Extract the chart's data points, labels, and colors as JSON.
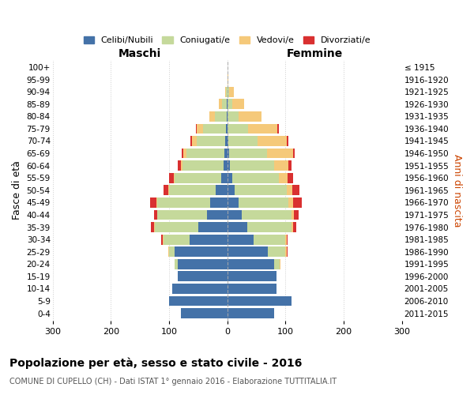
{
  "age_groups": [
    "0-4",
    "5-9",
    "10-14",
    "15-19",
    "20-24",
    "25-29",
    "30-34",
    "35-39",
    "40-44",
    "45-49",
    "50-54",
    "55-59",
    "60-64",
    "65-69",
    "70-74",
    "75-79",
    "80-84",
    "85-89",
    "90-94",
    "95-99",
    "100+"
  ],
  "birth_years": [
    "2011-2015",
    "2006-2010",
    "2001-2005",
    "1996-2000",
    "1991-1995",
    "1986-1990",
    "1981-1985",
    "1976-1980",
    "1971-1975",
    "1966-1970",
    "1961-1965",
    "1956-1960",
    "1951-1955",
    "1946-1950",
    "1941-1945",
    "1936-1940",
    "1931-1935",
    "1926-1930",
    "1921-1925",
    "1916-1920",
    "≤ 1915"
  ],
  "males": {
    "celibi": [
      80,
      100,
      95,
      85,
      85,
      90,
      65,
      50,
      35,
      30,
      20,
      10,
      7,
      5,
      3,
      2,
      1,
      1,
      0,
      0,
      0
    ],
    "coniugati": [
      0,
      0,
      0,
      0,
      5,
      10,
      45,
      75,
      85,
      90,
      80,
      80,
      70,
      65,
      50,
      40,
      20,
      8,
      2,
      0,
      0
    ],
    "vedovi": [
      0,
      0,
      0,
      0,
      0,
      1,
      1,
      1,
      1,
      2,
      2,
      2,
      3,
      5,
      8,
      10,
      10,
      5,
      1,
      0,
      0
    ],
    "divorziati": [
      0,
      0,
      0,
      0,
      0,
      0,
      2,
      5,
      5,
      10,
      8,
      8,
      5,
      3,
      2,
      2,
      0,
      0,
      0,
      0,
      0
    ]
  },
  "females": {
    "nubili": [
      80,
      110,
      85,
      85,
      80,
      70,
      45,
      35,
      25,
      20,
      12,
      8,
      5,
      3,
      2,
      1,
      1,
      1,
      0,
      0,
      0
    ],
    "coniugate": [
      0,
      0,
      0,
      0,
      10,
      30,
      55,
      75,
      85,
      85,
      90,
      80,
      75,
      65,
      50,
      35,
      18,
      8,
      3,
      0,
      0
    ],
    "vedove": [
      0,
      0,
      0,
      0,
      1,
      2,
      2,
      3,
      5,
      8,
      10,
      15,
      25,
      45,
      50,
      50,
      40,
      20,
      8,
      2,
      1
    ],
    "divorziate": [
      0,
      0,
      0,
      0,
      0,
      1,
      2,
      5,
      8,
      15,
      12,
      10,
      5,
      3,
      3,
      2,
      0,
      0,
      0,
      0,
      0
    ]
  },
  "colors": {
    "celibi": "#4472a8",
    "coniugati": "#c5d99b",
    "vedovi": "#f5c97a",
    "divorziati": "#d93030"
  },
  "xlim": 300,
  "title": "Popolazione per età, sesso e stato civile - 2016",
  "subtitle": "COMUNE DI CUPELLO (CH) - Dati ISTAT 1° gennaio 2016 - Elaborazione TUTTITALIA.IT",
  "xlabel_left": "Maschi",
  "xlabel_right": "Femmine",
  "ylabel_left": "Fasce di età",
  "ylabel_right": "Anni di nascita",
  "legend_labels": [
    "Celibi/Nubili",
    "Coniugati/e",
    "Vedovi/e",
    "Divorziati/e"
  ],
  "background_color": "#ffffff",
  "grid_color": "#c8c8c8"
}
